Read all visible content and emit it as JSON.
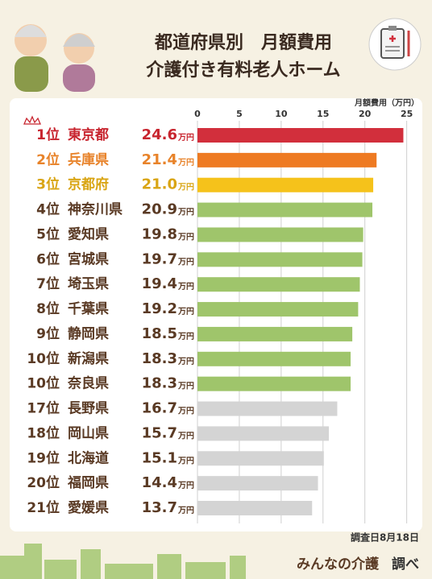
{
  "chart_data": {
    "type": "bar",
    "orientation": "horizontal",
    "title": "都道府県別　月額費用",
    "subtitle": "介護付き有料老人ホーム",
    "x_label": "月額費用（万円）",
    "unit": "万円",
    "ranks": [
      "1位",
      "2位",
      "3位",
      "4位",
      "5位",
      "6位",
      "7位",
      "8位",
      "9位",
      "10位",
      "10位",
      "17位",
      "18位",
      "19位",
      "20位",
      "21位"
    ],
    "categories": [
      "東京都",
      "兵庫県",
      "京都府",
      "神奈川県",
      "愛知県",
      "宮城県",
      "埼玉県",
      "千葉県",
      "静岡県",
      "新潟県",
      "奈良県",
      "長野県",
      "岡山県",
      "北海道",
      "福岡県",
      "愛媛県"
    ],
    "values": [
      24.6,
      21.4,
      21.0,
      20.9,
      19.8,
      19.7,
      19.4,
      19.2,
      18.5,
      18.3,
      18.3,
      16.7,
      15.7,
      15.1,
      14.4,
      13.7
    ],
    "value_labels": [
      "24.6",
      "21.4",
      "21.0",
      "20.9",
      "19.8",
      "19.7",
      "19.4",
      "19.2",
      "18.5",
      "18.3",
      "18.3",
      "16.7",
      "15.7",
      "15.1",
      "14.4",
      "13.7"
    ],
    "colors": [
      "#d22f3c",
      "#ee7a22",
      "#f5c21b",
      "#9fc56b",
      "#9fc56b",
      "#9fc56b",
      "#9fc56b",
      "#9fc56b",
      "#9fc56b",
      "#9fc56b",
      "#9fc56b",
      "#d4d4d4",
      "#d4d4d4",
      "#d4d4d4",
      "#d4d4d4",
      "#d4d4d4"
    ],
    "label_colors": [
      "#c8252f",
      "#e8832a",
      "#d9a514",
      "#5a3a24",
      "#5a3a24",
      "#5a3a24",
      "#5a3a24",
      "#5a3a24",
      "#5a3a24",
      "#5a3a24",
      "#5a3a24",
      "#5a3a24",
      "#5a3a24",
      "#5a3a24",
      "#5a3a24",
      "#5a3a24"
    ],
    "xlim": [
      0,
      26
    ],
    "xticks": [
      0,
      5,
      10,
      15,
      20,
      25
    ],
    "grid": true
  },
  "footer": {
    "date": "調査日8月18日",
    "brand": "みんなの介護",
    "suffix": "調べ"
  }
}
